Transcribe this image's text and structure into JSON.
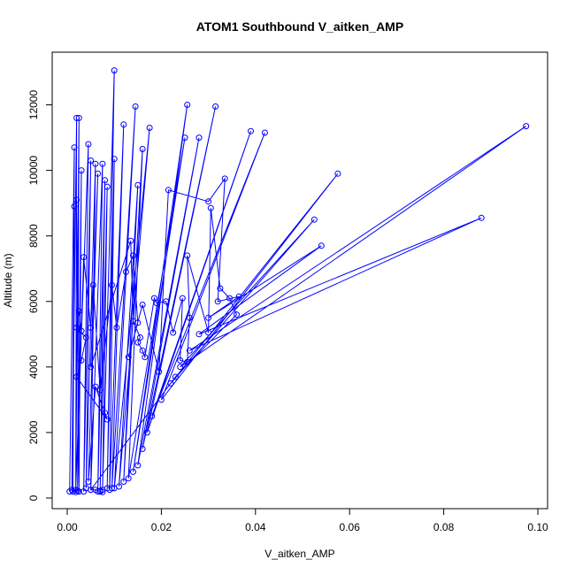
{
  "chart_data": {
    "type": "line",
    "title": "ATOM1 Southbound V_aitken_AMP",
    "xlabel": "V_aitken_AMP",
    "ylabel": "Altitude (m)",
    "xlim": [
      0.0,
      0.1
    ],
    "ylim": [
      0,
      13000
    ],
    "x_ticks": [
      0.0,
      0.02,
      0.04,
      0.06,
      0.08,
      0.1
    ],
    "x_tick_labels": [
      "0.00",
      "0.02",
      "0.04",
      "0.06",
      "0.08",
      "0.10"
    ],
    "y_ticks": [
      0,
      2000,
      4000,
      6000,
      8000,
      10000,
      12000
    ],
    "y_tick_labels": [
      "0",
      "2000",
      "4000",
      "6000",
      "8000",
      "10000",
      "12000"
    ],
    "grid": false,
    "line_color": "#0000ff",
    "marker": "open-circle",
    "series": [
      {
        "points": [
          [
            0.0005,
            200
          ],
          [
            0.0015,
            10700
          ],
          [
            0.0012,
            200
          ],
          [
            0.0015,
            8900
          ],
          [
            0.001,
            250
          ],
          [
            0.002,
            11600
          ],
          [
            0.0018,
            180
          ],
          [
            0.0025,
            11600
          ],
          [
            0.0022,
            220
          ],
          [
            0.003,
            10000
          ],
          [
            0.0025,
            200
          ],
          [
            0.002,
            9100
          ],
          [
            0.0018,
            250
          ],
          [
            0.0045,
            10800
          ],
          [
            0.0035,
            200
          ],
          [
            0.005,
            10300
          ],
          [
            0.004,
            300
          ],
          [
            0.006,
            10200
          ],
          [
            0.005,
            250
          ],
          [
            0.0075,
            10200
          ],
          [
            0.0065,
            200
          ],
          [
            0.008,
            9700
          ],
          [
            0.007,
            220
          ],
          [
            0.0085,
            9500
          ],
          [
            0.0075,
            250
          ],
          [
            0.01,
            13050
          ],
          [
            0.0085,
            300
          ],
          [
            0.01,
            10350
          ],
          [
            0.009,
            250
          ],
          [
            0.012,
            11400
          ],
          [
            0.0095,
            300
          ],
          [
            0.0145,
            11950
          ],
          [
            0.01,
            300
          ],
          [
            0.0175,
            11300
          ],
          [
            0.011,
            350
          ],
          [
            0.015,
            9550
          ],
          [
            0.012,
            500
          ],
          [
            0.016,
            10650
          ],
          [
            0.013,
            600
          ],
          [
            0.025,
            11000
          ],
          [
            0.014,
            800
          ],
          [
            0.0255,
            12000
          ],
          [
            0.015,
            1000
          ],
          [
            0.028,
            11000
          ],
          [
            0.016,
            1500
          ],
          [
            0.0315,
            11950
          ],
          [
            0.017,
            2000
          ],
          [
            0.039,
            11200
          ],
          [
            0.018,
            2500
          ],
          [
            0.042,
            11150
          ],
          [
            0.02,
            3000
          ],
          [
            0.0575,
            9900
          ],
          [
            0.022,
            3500
          ],
          [
            0.0525,
            8500
          ],
          [
            0.024,
            4000
          ],
          [
            0.0975,
            11350
          ],
          [
            0.026,
            4500
          ],
          [
            0.088,
            8550
          ],
          [
            0.028,
            5000
          ],
          [
            0.054,
            7700
          ],
          [
            0.03,
            5500
          ],
          [
            0.0365,
            6150
          ],
          [
            0.032,
            6000
          ],
          [
            0.0335,
            9750
          ],
          [
            0.03,
            9050
          ],
          [
            0.0215,
            9400
          ],
          [
            0.0195,
            3850
          ],
          [
            0.016,
            5900
          ],
          [
            0.013,
            4300
          ],
          [
            0.015,
            5350
          ],
          [
            0.014,
            7400
          ],
          [
            0.0125,
            6900
          ],
          [
            0.0105,
            5200
          ],
          [
            0.0095,
            6500
          ],
          [
            0.007,
            3300
          ],
          [
            0.0055,
            6500
          ],
          [
            0.005,
            5200
          ],
          [
            0.0035,
            7350
          ],
          [
            0.003,
            5100
          ],
          [
            0.0025,
            5700
          ],
          [
            0.002,
            5200
          ],
          [
            0.004,
            4900
          ],
          [
            0.003,
            4200
          ],
          [
            0.002,
            3700
          ],
          [
            0.0085,
            2400
          ],
          [
            0.008,
            2600
          ],
          [
            0.006,
            3400
          ],
          [
            0.0045,
            500
          ],
          [
            0.0065,
            9900
          ],
          [
            0.005,
            4000
          ],
          [
            0.0135,
            7850
          ],
          [
            0.014,
            5400
          ],
          [
            0.0155,
            4900
          ],
          [
            0.015,
            4750
          ],
          [
            0.016,
            4500
          ],
          [
            0.0165,
            4300
          ],
          [
            0.0185,
            6100
          ],
          [
            0.019,
            5950
          ],
          [
            0.021,
            6000
          ],
          [
            0.0225,
            5050
          ],
          [
            0.0245,
            6100
          ],
          [
            0.024,
            4200
          ],
          [
            0.0255,
            4150
          ],
          [
            0.026,
            5500
          ],
          [
            0.0255,
            7400
          ],
          [
            0.03,
            5050
          ],
          [
            0.0305,
            8850
          ],
          [
            0.0325,
            6400
          ],
          [
            0.0345,
            6100
          ],
          [
            0.036,
            5600
          ],
          [
            0.023,
            3700
          ],
          [
            0.005,
            250
          ],
          [
            0.006,
            250
          ],
          [
            0.007,
            200
          ],
          [
            0.0075,
            180
          ]
        ]
      }
    ]
  }
}
